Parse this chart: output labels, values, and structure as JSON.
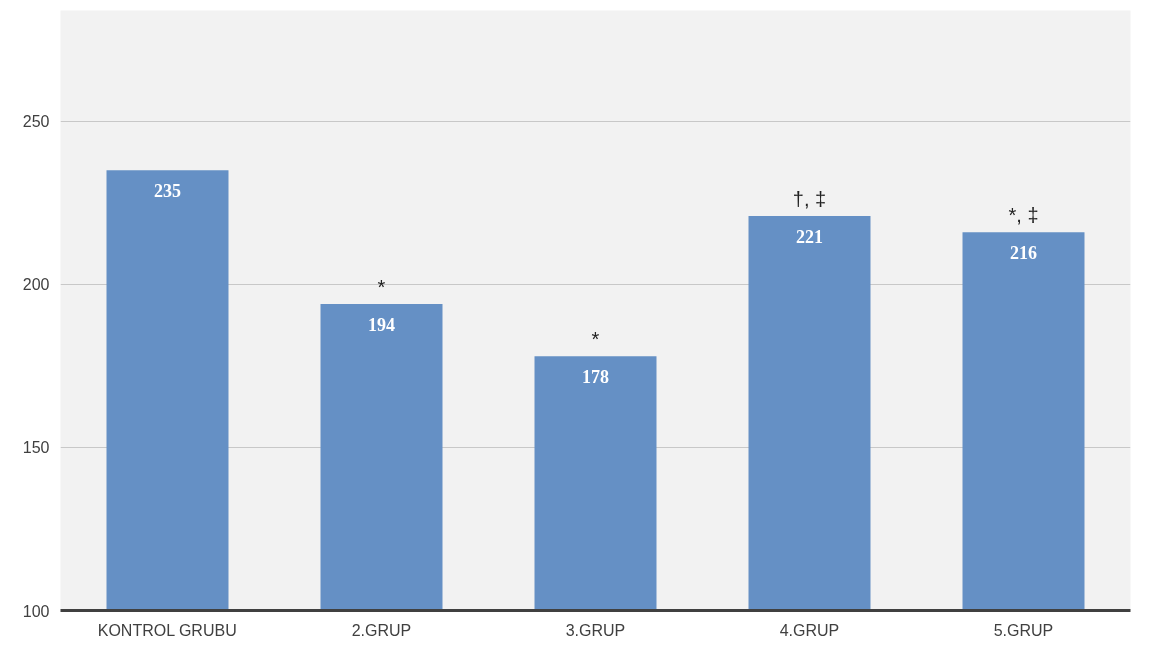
{
  "chart_data": {
    "type": "bar",
    "categories": [
      "KONTROL GRUBU",
      "2.GRUP",
      "3.GRUP",
      "4.GRUP",
      "5.GRUP"
    ],
    "values": [
      235,
      194,
      178,
      221,
      216
    ],
    "color": "#6590c5",
    "ylim": [
      100,
      284
    ],
    "yticks": [
      100,
      150,
      200,
      250
    ],
    "grid": "y",
    "data_labels": true,
    "annotations": [
      {
        "text": "*",
        "x": "2.GRUP",
        "y": 194
      },
      {
        "text": "*",
        "x": "3.GRUP",
        "y": 178
      },
      {
        "text": "†, ‡",
        "x": "4.GRUP",
        "y": 221
      },
      {
        "text": "*, ‡",
        "x": "5.GRUP",
        "y": 216
      }
    ]
  }
}
